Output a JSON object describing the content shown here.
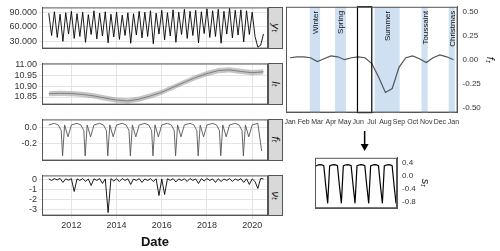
{
  "chart_data": [
    {
      "type": "line",
      "y_label": "yₜ",
      "color": "#000000",
      "grid": true,
      "tick_labels": "y",
      "x": [
        2011,
        2011.125,
        2011.25,
        2011.375,
        2011.5,
        2011.625,
        2011.75,
        2011.875,
        2012,
        2012.125,
        2012.25,
        2012.375,
        2012.5,
        2012.625,
        2012.75,
        2012.875,
        2013,
        2013.125,
        2013.25,
        2013.375,
        2013.5,
        2013.625,
        2013.75,
        2013.875,
        2014,
        2014.125,
        2014.25,
        2014.375,
        2014.5,
        2014.625,
        2014.75,
        2014.875,
        2015,
        2015.125,
        2015.25,
        2015.375,
        2015.5,
        2015.625,
        2015.75,
        2015.875,
        2016,
        2016.125,
        2016.25,
        2016.375,
        2016.5,
        2016.625,
        2016.75,
        2016.875,
        2017,
        2017.125,
        2017.25,
        2017.375,
        2017.5,
        2017.625,
        2017.75,
        2017.875,
        2018,
        2018.125,
        2018.25,
        2018.375,
        2018.5,
        2018.625,
        2018.75,
        2018.875,
        2019,
        2019.125,
        2019.25,
        2019.375,
        2019.5,
        2019.625,
        2019.75,
        2019.875,
        2020,
        2020.125,
        2020.25,
        2020.375,
        2020.5
      ],
      "values": [
        88000,
        42000,
        91000,
        38000,
        86000,
        30000,
        89000,
        45000,
        92000,
        36000,
        87000,
        40000,
        90000,
        28000,
        85000,
        44000,
        93000,
        35000,
        88000,
        41000,
        91000,
        27000,
        86000,
        39000,
        90000,
        34000,
        84000,
        42000,
        89000,
        26000,
        87000,
        43000,
        92000,
        37000,
        90000,
        40000,
        93000,
        25000,
        88000,
        45000,
        94000,
        33000,
        89000,
        41000,
        95000,
        28000,
        90000,
        44000,
        96000,
        36000,
        92000,
        42000,
        94000,
        27000,
        91000,
        46000,
        97000,
        38000,
        93000,
        40000,
        96000,
        26000,
        92000,
        45000,
        98000,
        37000,
        94000,
        43000,
        95000,
        29000,
        93000,
        44000,
        90000,
        40000,
        18000,
        22000,
        45000
      ],
      "xlim": [
        2010.7,
        2020.7
      ],
      "xticks": [
        2012,
        2014,
        2016,
        2018,
        2020
      ],
      "ylim": [
        15000,
        100000
      ],
      "yticks": [
        {
          "value": 30000,
          "label": "30.000"
        },
        {
          "value": 60000,
          "label": "60.000"
        },
        {
          "value": 90000,
          "label": "90.000"
        }
      ]
    },
    {
      "type": "line",
      "y_label": "lₜ",
      "color": "#555555",
      "grid": true,
      "tick_labels": "y",
      "x": [
        2011,
        2011.5,
        2012,
        2012.5,
        2013,
        2013.5,
        2014,
        2014.5,
        2015,
        2015.5,
        2016,
        2016.5,
        2017,
        2017.5,
        2018,
        2018.5,
        2019,
        2019.5,
        2020,
        2020.5
      ],
      "values": [
        10.865,
        10.867,
        10.866,
        10.862,
        10.855,
        10.845,
        10.836,
        10.832,
        10.84,
        10.855,
        10.872,
        10.895,
        10.918,
        10.94,
        10.958,
        10.972,
        10.975,
        10.968,
        10.962,
        10.966
      ],
      "band": {
        "lower": [
          10.853,
          10.855,
          10.854,
          10.85,
          10.843,
          10.833,
          10.824,
          10.82,
          10.828,
          10.843,
          10.86,
          10.883,
          10.906,
          10.928,
          10.946,
          10.96,
          10.963,
          10.956,
          10.95,
          10.954
        ],
        "upper": [
          10.877,
          10.879,
          10.878,
          10.874,
          10.867,
          10.857,
          10.848,
          10.844,
          10.852,
          10.867,
          10.884,
          10.907,
          10.93,
          10.952,
          10.97,
          10.984,
          10.987,
          10.98,
          10.974,
          10.978
        ]
      },
      "xlim": [
        2010.7,
        2020.7
      ],
      "xticks": [
        2012,
        2014,
        2016,
        2018,
        2020
      ],
      "ylim": [
        10.815,
        11.005
      ],
      "yticks": [
        10.85,
        {
          "value": 10.9,
          "label": "10.90"
        },
        10.95,
        {
          "value": 11,
          "label": "11.00"
        }
      ]
    },
    {
      "type": "line",
      "y_label": "fₜ",
      "color": "#555555",
      "grid": true,
      "tick_labels": "y",
      "x": [
        2011,
        2011.25,
        2011.42,
        2011.55,
        2011.61,
        2011.7,
        2011.85,
        2012,
        2012.25,
        2012.42,
        2012.55,
        2012.61,
        2012.7,
        2012.85,
        2013,
        2013.25,
        2013.42,
        2013.55,
        2013.61,
        2013.7,
        2013.85,
        2014,
        2014.25,
        2014.42,
        2014.55,
        2014.61,
        2014.7,
        2014.85,
        2015,
        2015.25,
        2015.42,
        2015.55,
        2015.61,
        2015.7,
        2015.85,
        2016,
        2016.25,
        2016.42,
        2016.55,
        2016.61,
        2016.7,
        2016.85,
        2017,
        2017.25,
        2017.42,
        2017.55,
        2017.61,
        2017.7,
        2017.85,
        2018,
        2018.25,
        2018.42,
        2018.55,
        2018.61,
        2018.7,
        2018.85,
        2019,
        2019.25,
        2019.42,
        2019.55,
        2019.61,
        2019.7,
        2019.85,
        2020,
        2020.25,
        2020.42
      ],
      "values": [
        0.03,
        0.05,
        0.03,
        -0.04,
        -0.36,
        0.03,
        -0.12,
        0.03,
        0.05,
        0.03,
        -0.04,
        -0.36,
        0.03,
        -0.12,
        0.03,
        0.05,
        0.03,
        -0.04,
        -0.36,
        0.03,
        -0.12,
        0.03,
        0.05,
        0.03,
        -0.04,
        -0.36,
        0.03,
        -0.12,
        0.03,
        0.05,
        0.03,
        -0.04,
        -0.36,
        0.03,
        -0.12,
        0.03,
        0.05,
        0.03,
        -0.04,
        -0.36,
        0.03,
        -0.12,
        0.03,
        0.05,
        0.03,
        -0.04,
        -0.36,
        0.03,
        -0.12,
        0.03,
        0.05,
        0.03,
        -0.04,
        -0.36,
        0.03,
        -0.12,
        0.03,
        0.05,
        0.03,
        -0.04,
        -0.36,
        0.03,
        -0.12,
        0.03,
        0.05,
        -0.3
      ],
      "xlim": [
        2010.7,
        2020.7
      ],
      "xticks": [
        2012,
        2014,
        2016,
        2018,
        2020
      ],
      "ylim": [
        -0.42,
        0.1
      ],
      "yticks": [
        {
          "value": -0.2,
          "label": "-0.2"
        },
        {
          "value": 0,
          "label": "0.0"
        }
      ]
    },
    {
      "type": "line",
      "y_label": "νₜ",
      "x_label": "Date",
      "color": "#000000",
      "grid": true,
      "x": [
        2011,
        2011.125,
        2011.25,
        2011.375,
        2011.5,
        2011.625,
        2011.75,
        2011.875,
        2012,
        2012.125,
        2012.25,
        2012.375,
        2012.5,
        2012.625,
        2012.75,
        2012.875,
        2013,
        2013.125,
        2013.25,
        2013.375,
        2013.5,
        2013.625,
        2013.75,
        2013.875,
        2014,
        2014.125,
        2014.25,
        2014.375,
        2014.5,
        2014.625,
        2014.75,
        2014.875,
        2015,
        2015.125,
        2015.25,
        2015.375,
        2015.5,
        2015.625,
        2015.75,
        2015.875,
        2016,
        2016.125,
        2016.25,
        2016.375,
        2016.5,
        2016.625,
        2016.75,
        2016.875,
        2017,
        2017.125,
        2017.25,
        2017.375,
        2017.5,
        2017.625,
        2017.75,
        2017.875,
        2018,
        2018.125,
        2018.25,
        2018.375,
        2018.5,
        2018.625,
        2018.75,
        2018.875,
        2019,
        2019.125,
        2019.25,
        2019.375,
        2019.5,
        2019.625,
        2019.75,
        2019.875,
        2020,
        2020.125,
        2020.25,
        2020.375,
        2020.5
      ],
      "values": [
        0.05,
        -0.1,
        0.08,
        -0.05,
        0.1,
        -0.3,
        0.06,
        -0.08,
        0.07,
        -1.2,
        0.05,
        -0.1,
        0.09,
        -0.2,
        0.04,
        -0.6,
        0.06,
        -0.1,
        0.08,
        -0.4,
        0.05,
        -3.3,
        0.07,
        -0.15,
        0.05,
        -0.2,
        0.09,
        -0.1,
        0.06,
        -0.5,
        0.04,
        -0.1,
        0.08,
        -0.3,
        0.05,
        -0.1,
        0.07,
        -0.2,
        0.06,
        -1.6,
        0.05,
        -1.5,
        0.07,
        -0.1,
        0.08,
        -0.25,
        0.05,
        -0.1,
        0.06,
        -0.2,
        0.09,
        -0.1,
        0.05,
        -0.4,
        0.07,
        -0.15,
        0.08,
        -0.1,
        0.05,
        -0.3,
        0.06,
        -0.2,
        0.04,
        -0.1,
        0.07,
        -0.2,
        0.05,
        -0.1,
        0.08,
        -0.3,
        0.06,
        -0.5,
        0.05,
        -0.2,
        -0.9,
        0.1,
        0.05
      ],
      "xlim": [
        2010.7,
        2020.7
      ],
      "xticks": [
        2012,
        2014,
        2016,
        2018,
        2020
      ],
      "ylim": [
        -3.6,
        0.4
      ],
      "yticks": [
        -3,
        -2,
        -1,
        0
      ]
    },
    {
      "type": "line",
      "y_label": "fₜ",
      "color": "#555555",
      "grid": false,
      "x": [
        0,
        0.5,
        1,
        1.5,
        2,
        2.5,
        3,
        3.5,
        4,
        4.5,
        5,
        5.5,
        6,
        6.5,
        7,
        7.5,
        8,
        8.5,
        9,
        9.5,
        10,
        10.5,
        11,
        11.5,
        12
      ],
      "values": [
        0.02,
        0.03,
        0.03,
        0.02,
        -0.02,
        0.01,
        0.04,
        0.03,
        0.0,
        0.02,
        0.03,
        0.02,
        -0.04,
        -0.18,
        -0.34,
        -0.3,
        -0.08,
        0.02,
        0.04,
        0.01,
        -0.03,
        0.02,
        0.05,
        0.03,
        0.0
      ],
      "xlim": [
        -0.3,
        12.3
      ],
      "xticks": [
        {
          "value": 0,
          "label": "Jan"
        },
        {
          "value": 1,
          "label": "Feb"
        },
        {
          "value": 2,
          "label": "Mar"
        },
        {
          "value": 3,
          "label": "Apr"
        },
        {
          "value": 4,
          "label": "May"
        },
        {
          "value": 5,
          "label": "Jun"
        },
        {
          "value": 6,
          "label": "Jul"
        },
        {
          "value": 7,
          "label": "Aug"
        },
        {
          "value": 8,
          "label": "Sep"
        },
        {
          "value": 9,
          "label": "Oct"
        },
        {
          "value": 10,
          "label": "Nov"
        },
        {
          "value": 11,
          "label": "Dec"
        },
        {
          "value": 12,
          "label": "Jan"
        }
      ],
      "ylim": [
        -0.55,
        0.55
      ],
      "yticks": [
        {
          "value": -0.5,
          "label": "-0.50"
        },
        {
          "value": -0.25,
          "label": "-0.25"
        },
        {
          "value": 0,
          "label": "0.00"
        },
        {
          "value": 0.25,
          "label": "0.25"
        },
        {
          "value": 0.5,
          "label": "0.50"
        }
      ],
      "periods": [
        {
          "label": "Winter",
          "start": 1.45,
          "end": 2.2
        },
        {
          "label": "Spring",
          "start": 3.3,
          "end": 4.1
        },
        {
          "label": "Summer",
          "start": 6.2,
          "end": 8.05
        },
        {
          "label": "Toussaint",
          "start": 9.65,
          "end": 10.1
        },
        {
          "label": "Christmas",
          "start": 11.65,
          "end": 12.1
        }
      ],
      "highlight": {
        "start": 4.95,
        "end": 6.0
      }
    },
    {
      "type": "line",
      "y_label": "sₜ",
      "color": "#000000",
      "grid": false,
      "tick_labels": "y",
      "x": [
        0,
        1,
        2,
        3,
        4,
        5,
        6,
        7,
        8,
        9,
        10,
        11,
        12,
        13,
        14,
        15,
        16,
        17,
        18,
        19,
        20,
        21,
        22,
        23,
        24,
        25,
        26,
        27,
        28,
        29,
        30,
        31,
        32,
        33,
        34,
        35,
        36,
        37,
        38,
        39,
        40,
        41
      ],
      "values": [
        0.3,
        0.33,
        0.34,
        0.33,
        0.31,
        -0.3,
        -0.85,
        0.3,
        0.33,
        0.34,
        0.33,
        0.31,
        -0.3,
        -0.85,
        0.3,
        0.33,
        0.34,
        0.33,
        0.31,
        -0.3,
        -0.85,
        0.3,
        0.33,
        0.34,
        0.33,
        0.31,
        -0.3,
        -0.85,
        0.3,
        0.33,
        0.34,
        0.33,
        0.31,
        -0.3,
        -0.85,
        0.3,
        0.33,
        0.34,
        0.33,
        0.31,
        -0.3,
        -0.85
      ],
      "xlim": [
        -0.5,
        41.5
      ],
      "ylim": [
        -1.0,
        0.55
      ],
      "yticks": [
        -0.8,
        -0.4,
        {
          "value": 0,
          "label": "0.0"
        },
        0.4
      ]
    }
  ]
}
